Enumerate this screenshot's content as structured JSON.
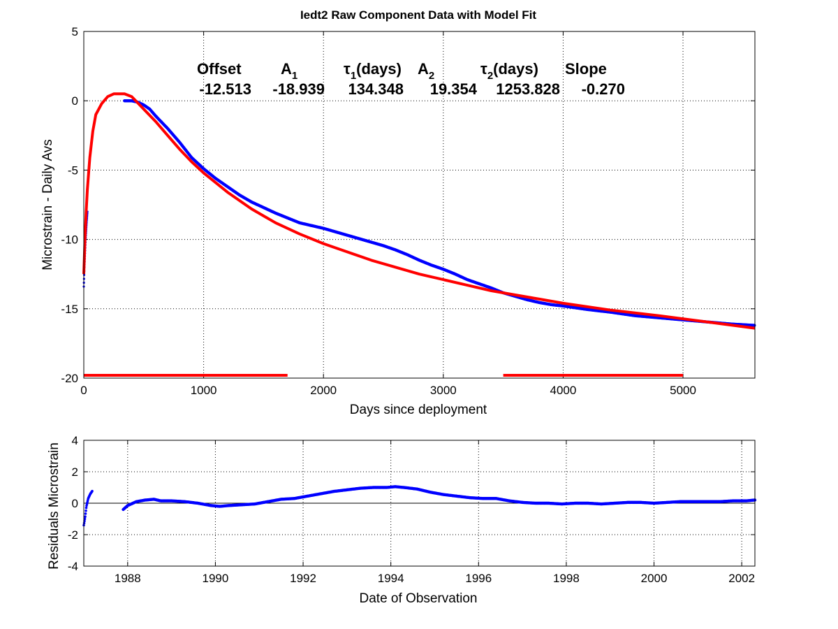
{
  "chart_data": [
    {
      "type": "scatter",
      "title": "Iedt2  Raw Component Data with Model Fit",
      "xlabel": "Days since deployment",
      "ylabel": "Microstrain - Daily Avs",
      "xlim": [
        0,
        5600
      ],
      "ylim": [
        -20,
        5
      ],
      "xticks": [
        0,
        1000,
        2000,
        3000,
        4000,
        5000
      ],
      "yticks": [
        -20,
        -15,
        -10,
        -5,
        0,
        5
      ],
      "grid": true,
      "colors": {
        "data": "#0000ff",
        "fit": "#ff0000",
        "marker": "#ff0000"
      },
      "parameters": {
        "headers": [
          {
            "main": "Offset",
            "sub": "",
            "rest": ""
          },
          {
            "main": "A",
            "sub": "1",
            "rest": ""
          },
          {
            "main": "τ",
            "sub": "1",
            "rest": "(days)"
          },
          {
            "main": "A",
            "sub": "2",
            "rest": ""
          },
          {
            "main": "τ",
            "sub": "2",
            "rest": "(days)"
          },
          {
            "main": "Slope",
            "sub": "",
            "rest": ""
          }
        ],
        "values": [
          "-12.513",
          "-18.939",
          "134.348",
          "19.354",
          "1253.828",
          "-0.270"
        ]
      },
      "series": [
        {
          "kind": "observed",
          "x": [
            0,
            5,
            10,
            15,
            20,
            25,
            30,
            340,
            400,
            450,
            500,
            550,
            600,
            700,
            800,
            900,
            1000,
            1100,
            1200,
            1300,
            1400,
            1500,
            1600,
            1700,
            1800,
            1900,
            2000,
            2100,
            2200,
            2300,
            2400,
            2500,
            2600,
            2700,
            2800,
            2900,
            3000,
            3100,
            3200,
            3300,
            3400,
            3500,
            3600,
            3700,
            3800,
            3900,
            4000,
            4200,
            4400,
            4600,
            4800,
            5000,
            5200,
            5400,
            5600
          ],
          "y": [
            -13.4,
            -12.0,
            -11.0,
            -10.0,
            -9.3,
            -8.6,
            -8.0,
            0.0,
            0.0,
            -0.1,
            -0.3,
            -0.6,
            -1.1,
            -2.0,
            -3.0,
            -4.1,
            -4.9,
            -5.6,
            -6.2,
            -6.8,
            -7.3,
            -7.7,
            -8.1,
            -8.45,
            -8.8,
            -9.0,
            -9.2,
            -9.45,
            -9.7,
            -9.95,
            -10.2,
            -10.45,
            -10.75,
            -11.1,
            -11.5,
            -11.85,
            -12.15,
            -12.5,
            -12.9,
            -13.2,
            -13.5,
            -13.85,
            -14.1,
            -14.35,
            -14.55,
            -14.7,
            -14.8,
            -15.05,
            -15.25,
            -15.5,
            -15.65,
            -15.8,
            -15.95,
            -16.1,
            -16.2
          ]
        },
        {
          "kind": "fit",
          "x": [
            0,
            5,
            10,
            20,
            30,
            50,
            75,
            100,
            150,
            200,
            250,
            300,
            340,
            400,
            500,
            600,
            700,
            800,
            900,
            1000,
            1200,
            1400,
            1600,
            1800,
            2000,
            2200,
            2400,
            2600,
            2800,
            3000,
            3200,
            3400,
            3600,
            3800,
            4000,
            4400,
            4800,
            5200,
            5600
          ],
          "y": [
            -12.5,
            -11.2,
            -10.0,
            -8.0,
            -6.4,
            -4.1,
            -2.2,
            -1.0,
            -0.2,
            0.3,
            0.5,
            0.5,
            0.5,
            0.3,
            -0.6,
            -1.5,
            -2.5,
            -3.5,
            -4.4,
            -5.2,
            -6.6,
            -7.8,
            -8.8,
            -9.6,
            -10.3,
            -10.9,
            -11.5,
            -12.0,
            -12.5,
            -12.9,
            -13.3,
            -13.7,
            -14.0,
            -14.3,
            -14.6,
            -15.1,
            -15.5,
            -15.95,
            -16.4
          ]
        }
      ],
      "marker_bars": [
        {
          "x": [
            0,
            1700
          ],
          "y": -19.8
        },
        {
          "x": [
            3500,
            5000
          ],
          "y": -19.8
        }
      ]
    },
    {
      "type": "scatter",
      "xlabel": "Date of Observation",
      "ylabel": "Residuals Microstrain",
      "xlim": [
        1987.0,
        2002.3
      ],
      "ylim": [
        -4,
        4
      ],
      "xticks": [
        1988,
        1990,
        1992,
        1994,
        1996,
        1998,
        2000,
        2002
      ],
      "yticks": [
        -4,
        -2,
        0,
        2,
        4
      ],
      "grid": true,
      "zero_line": true,
      "colors": {
        "data": "#0000ff",
        "zero": "#000000"
      },
      "series": [
        {
          "kind": "residual",
          "x": [
            1987.0,
            1987.03,
            1987.06,
            1987.1,
            1987.15,
            1987.2,
            1987.9,
            1988.0,
            1988.2,
            1988.4,
            1988.6,
            1988.75,
            1989.0,
            1989.3,
            1989.6,
            1989.9,
            1990.1,
            1990.3,
            1990.6,
            1990.9,
            1991.2,
            1991.5,
            1991.8,
            1992.1,
            1992.4,
            1992.7,
            1993.0,
            1993.3,
            1993.6,
            1993.9,
            1994.1,
            1994.3,
            1994.6,
            1994.9,
            1995.2,
            1995.5,
            1995.8,
            1996.1,
            1996.4,
            1996.7,
            1997.0,
            1997.3,
            1997.6,
            1997.9,
            1998.2,
            1998.5,
            1998.8,
            1999.1,
            1999.4,
            1999.7,
            2000.0,
            2000.3,
            2000.6,
            2000.9,
            2001.2,
            2001.5,
            2001.8,
            2002.1,
            2002.3
          ],
          "y": [
            -1.4,
            -0.9,
            -0.2,
            0.3,
            0.6,
            0.8,
            -0.4,
            -0.15,
            0.1,
            0.2,
            0.25,
            0.15,
            0.15,
            0.1,
            0.0,
            -0.15,
            -0.2,
            -0.15,
            -0.1,
            -0.05,
            0.1,
            0.25,
            0.3,
            0.45,
            0.6,
            0.75,
            0.85,
            0.95,
            1.0,
            1.0,
            1.05,
            1.0,
            0.9,
            0.7,
            0.55,
            0.45,
            0.35,
            0.3,
            0.3,
            0.15,
            0.05,
            0.0,
            0.0,
            -0.05,
            0.0,
            0.0,
            -0.05,
            0.0,
            0.05,
            0.05,
            0.0,
            0.05,
            0.1,
            0.1,
            0.1,
            0.1,
            0.15,
            0.15,
            0.2
          ]
        }
      ]
    }
  ]
}
